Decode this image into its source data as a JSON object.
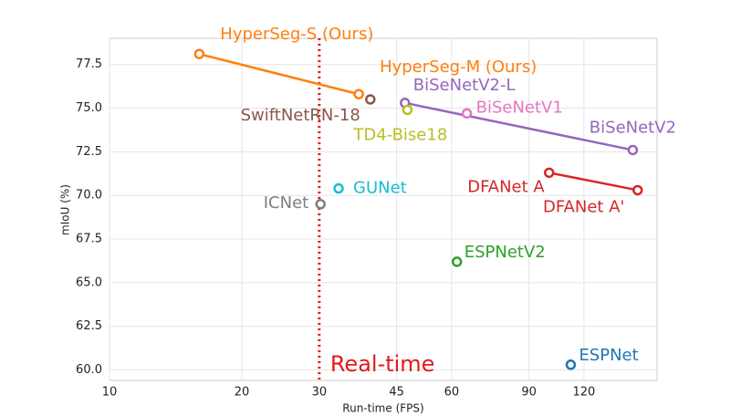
{
  "chart_data": {
    "type": "scatter",
    "xlabel": "Run-time (FPS)",
    "ylabel": "mIoU (%)",
    "xscale": "log",
    "grid": true,
    "xlim": [
      10,
      176
    ],
    "ylim": [
      59.4,
      79.0
    ],
    "xticks": [
      10,
      20,
      30,
      45,
      60,
      90,
      120
    ],
    "yticks": [
      {
        "value": 60,
        "label": "60.0"
      },
      62.5,
      {
        "value": 65,
        "label": "65.0"
      },
      67.5,
      {
        "value": 70,
        "label": "70.0"
      },
      72.5,
      {
        "value": 75,
        "label": "75.0"
      },
      77.5
    ],
    "vline": 30,
    "vline_label": "Real-time",
    "vline_color": "#e31a1c",
    "series": [
      {
        "labels": [
          "HyperSeg-S (Ours)",
          "HyperSeg-M (Ours)"
        ],
        "color": "#ff7f0e",
        "x": [
          16,
          36.9
        ],
        "values": [
          78.1,
          75.8
        ],
        "connect": true
      },
      {
        "labels": [
          "SwiftNetRN-18"
        ],
        "color": "#8c564b",
        "x": [
          39.2
        ],
        "values": [
          75.5
        ]
      },
      {
        "labels": [
          "BiSeNetV2-L",
          "BiSeNetV2"
        ],
        "color": "#9467bd",
        "x": [
          47,
          155
        ],
        "values": [
          75.3,
          72.6
        ],
        "connect": true
      },
      {
        "labels": [
          "TD4-Bise18"
        ],
        "color": "#bcbd22",
        "x": [
          47.6
        ],
        "values": [
          74.9
        ]
      },
      {
        "labels": [
          "BiSeNetV1"
        ],
        "color": "#e377c2",
        "x": [
          65
        ],
        "values": [
          74.7
        ]
      },
      {
        "labels": [
          "GUNet"
        ],
        "color": "#17becf",
        "x": [
          33.2
        ],
        "values": [
          70.4
        ]
      },
      {
        "labels": [
          "ICNet"
        ],
        "color": "#7f7f7f",
        "x": [
          30.2
        ],
        "values": [
          69.5
        ]
      },
      {
        "labels": [
          "DFANet A",
          "DFANet A'"
        ],
        "color": "#d62728",
        "x": [
          100,
          159
        ],
        "values": [
          71.3,
          70.3
        ],
        "connect": true
      },
      {
        "labels": [
          "ESPNetV2"
        ],
        "color": "#2ca02c",
        "x": [
          61.7
        ],
        "values": [
          66.2
        ]
      },
      {
        "labels": [
          "ESPNet"
        ],
        "color": "#1f77b4",
        "x": [
          112
        ],
        "values": [
          60.3
        ]
      }
    ]
  }
}
